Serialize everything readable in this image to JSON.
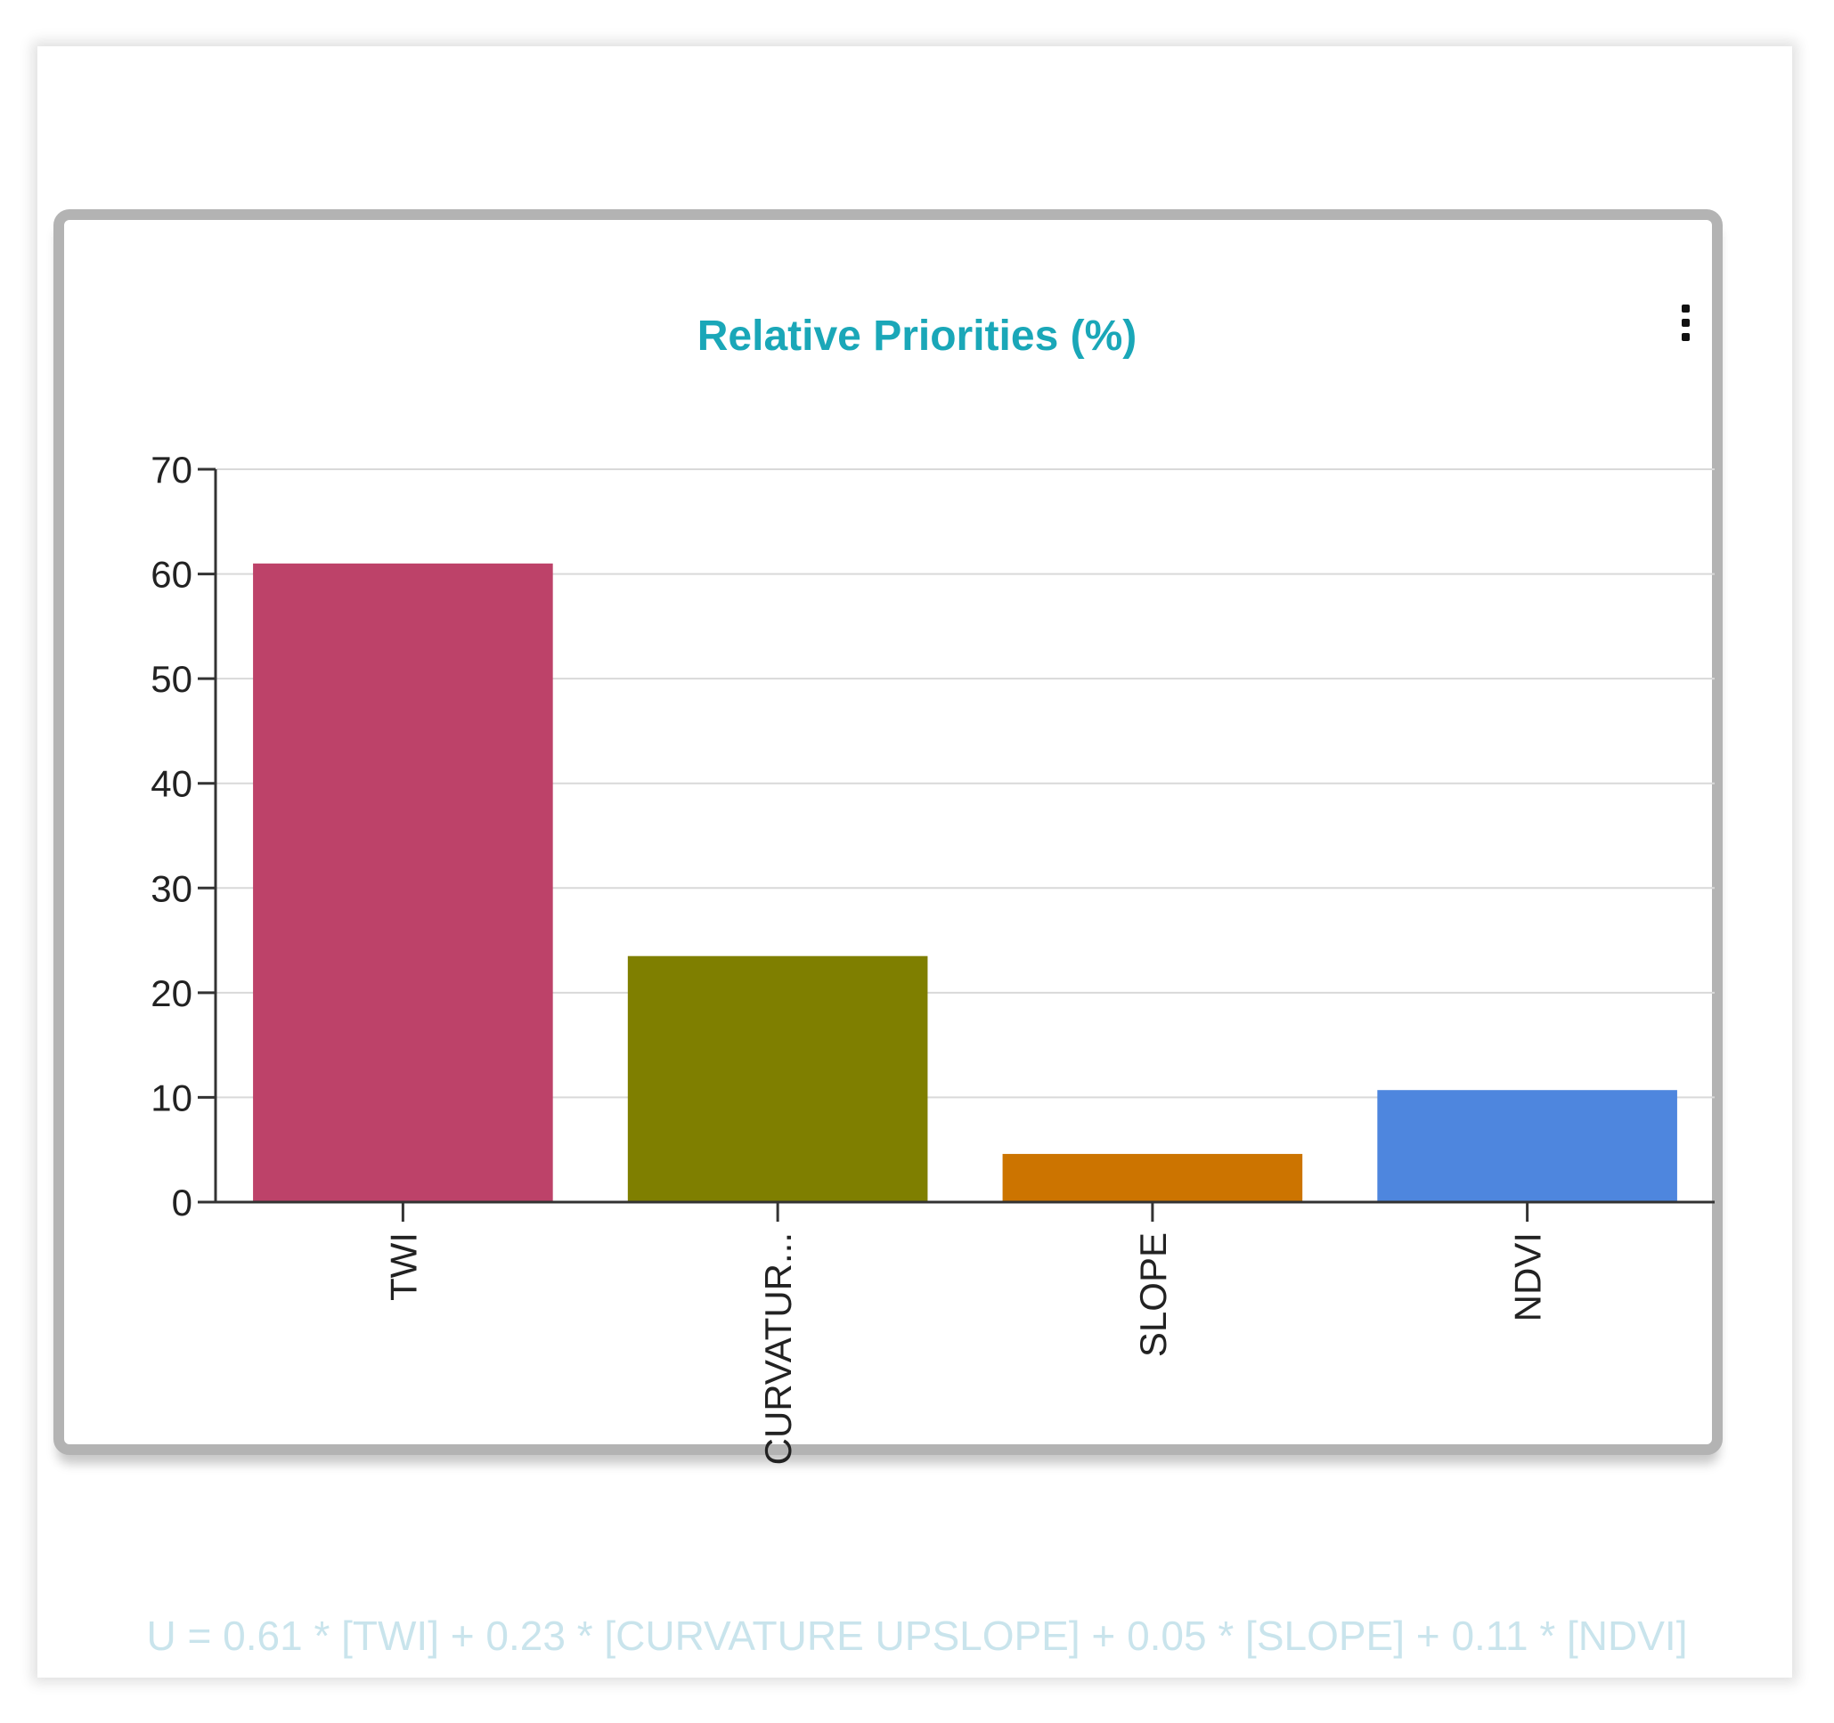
{
  "header": {
    "menu_icon": "more-vertical-icon"
  },
  "chart_data": {
    "type": "bar",
    "title": "Relative Priorities (%)",
    "categories": [
      "TWI",
      "CURVATUR...",
      "SLOPE",
      "NDVI"
    ],
    "values": [
      61,
      23.5,
      4.6,
      10.7
    ],
    "colors": [
      "#bd4269",
      "#7f7f00",
      "#cc7400",
      "#4e86de"
    ],
    "ylim": [
      0,
      70
    ],
    "yticks": [
      0,
      10,
      20,
      30,
      40,
      50,
      60,
      70
    ],
    "grid": true,
    "xlabel": "",
    "ylabel": ""
  },
  "formula": "U =  0.61 * [TWI] + 0.23 * [CURVATURE UPSLOPE] + 0.05 * [SLOPE] + 0.11 * [NDVI]"
}
